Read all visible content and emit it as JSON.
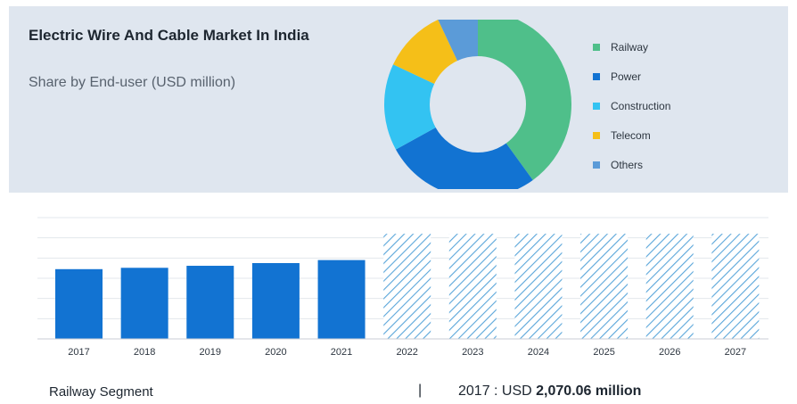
{
  "title": "Electric Wire And Cable Market In India",
  "subtitle": "Share by End-user (USD million)",
  "colors": {
    "bar": "#1273d2",
    "hatch": "#5aa6da",
    "panel": "#dfe6ef"
  },
  "chart_data": [
    {
      "type": "pie",
      "title": "",
      "donut": true,
      "categories": [
        "Railway",
        "Power",
        "Construction",
        "Telecom",
        "Others"
      ],
      "values": [
        40,
        27,
        15,
        11,
        7
      ],
      "colors": [
        "#4fbf8a",
        "#1273d2",
        "#33c3f2",
        "#f5bf18",
        "#5b9bd8"
      ],
      "legend_position": "right"
    },
    {
      "type": "bar",
      "title": "",
      "categories": [
        "2017",
        "2018",
        "2019",
        "2020",
        "2021",
        "2022",
        "2023",
        "2024",
        "2025",
        "2026",
        "2027"
      ],
      "values": [
        2070.06,
        2110,
        2170,
        2250,
        2340,
        3120,
        3120,
        3120,
        3120,
        3120,
        3120
      ],
      "forecast_from": "2022",
      "grid": true,
      "ylim": [
        0,
        3600
      ]
    }
  ],
  "footer": {
    "segment": "Railway Segment",
    "separator": "|",
    "year_label": "2017 : USD ",
    "value": "2,070.06 million"
  }
}
